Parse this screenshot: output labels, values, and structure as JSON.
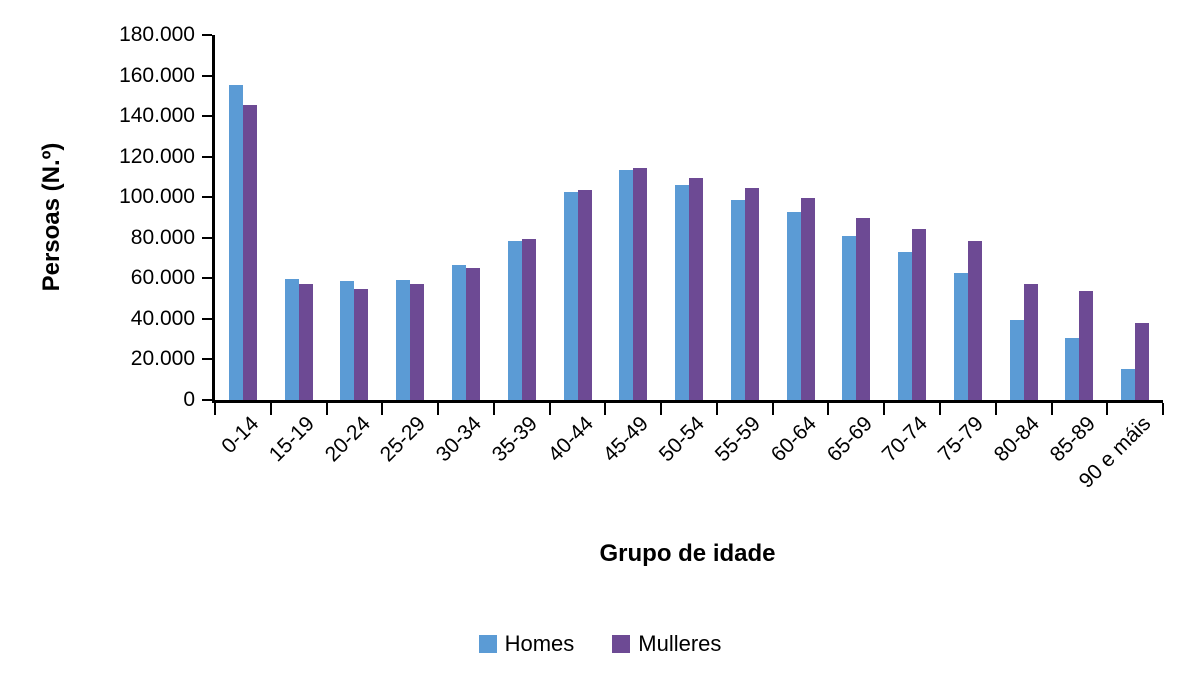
{
  "chart_data": {
    "type": "bar",
    "title": "",
    "xlabel": "Grupo de idade",
    "ylabel": "Persoas (N.º)",
    "categories": [
      "0-14",
      "15-19",
      "20-24",
      "25-29",
      "30-34",
      "35-39",
      "40-44",
      "45-49",
      "50-54",
      "55-59",
      "60-64",
      "65-69",
      "70-74",
      "75-79",
      "80-84",
      "85-89",
      "90 e máis"
    ],
    "series": [
      {
        "name": "Homes",
        "color": "#5B9BD5",
        "values": [
          155500,
          59500,
          58500,
          59000,
          66500,
          78500,
          102500,
          113500,
          106000,
          98500,
          92500,
          81000,
          73000,
          62500,
          39500,
          30500,
          15500
        ]
      },
      {
        "name": "Mulleres",
        "color": "#6D4A94",
        "values": [
          145500,
          57000,
          55000,
          57000,
          65000,
          79500,
          103500,
          114500,
          109500,
          104500,
          99500,
          90000,
          84500,
          78500,
          57000,
          54000,
          38000
        ]
      }
    ],
    "ylim": [
      0,
      180000
    ],
    "ytick_step": 20000,
    "ytick_labels": [
      "0",
      "20.000",
      "40.000",
      "60.000",
      "80.000",
      "100.000",
      "120.000",
      "140.000",
      "160.000",
      "180.000"
    ],
    "grid": false,
    "legend_position": "bottom",
    "axis_color": "#000000",
    "background": "#FFFFFF"
  }
}
